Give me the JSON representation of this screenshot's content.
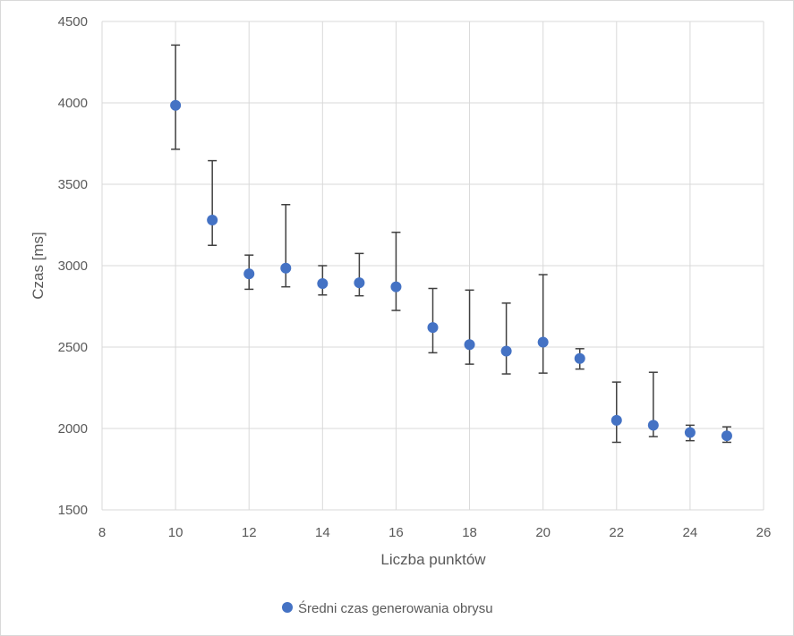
{
  "chart_data": {
    "type": "scatter",
    "title": "",
    "xlabel": "Liczba punktów",
    "ylabel": "Czas [ms]",
    "xlim": [
      8,
      26
    ],
    "ylim": [
      1500,
      4500
    ],
    "xticks": [
      8,
      10,
      12,
      14,
      16,
      18,
      20,
      22,
      24,
      26
    ],
    "yticks": [
      1500,
      2000,
      2500,
      3000,
      3500,
      4000,
      4500
    ],
    "grid": true,
    "legend_position": "bottom",
    "series": [
      {
        "name": "Średni czas generowania obrysu",
        "color": "#4472c4",
        "x": [
          10,
          11,
          12,
          13,
          14,
          15,
          16,
          17,
          18,
          19,
          20,
          21,
          22,
          23,
          24,
          25
        ],
        "y": [
          3985,
          3280,
          2950,
          2985,
          2890,
          2895,
          2870,
          2620,
          2515,
          2475,
          2530,
          2430,
          2050,
          2020,
          1975,
          1955
        ],
        "err_low": [
          3715,
          3125,
          2855,
          2870,
          2820,
          2815,
          2725,
          2465,
          2395,
          2335,
          2340,
          2365,
          1915,
          1950,
          1925,
          1915
        ],
        "err_high": [
          4355,
          3645,
          3065,
          3375,
          3000,
          3075,
          3205,
          2860,
          2850,
          2770,
          2945,
          2490,
          2285,
          2345,
          2020,
          2010
        ]
      }
    ]
  }
}
